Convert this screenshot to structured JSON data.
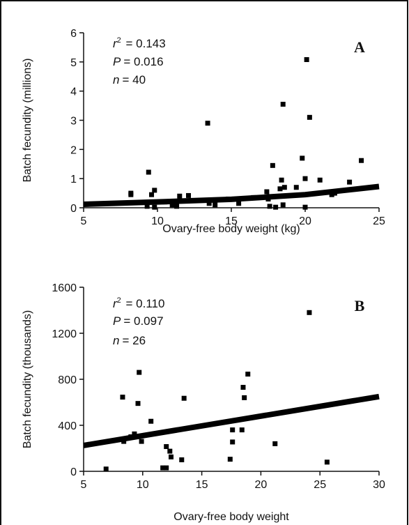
{
  "chart_data": [
    {
      "type": "scatter",
      "panel_label": "A",
      "xlabel": "Ovary-free body weight (kg)",
      "ylabel": "Batch fecundity (millions)",
      "xlim": [
        5,
        25
      ],
      "ylim": [
        0,
        6
      ],
      "xticks": [
        "5",
        "10",
        "15",
        "20",
        "25"
      ],
      "yticks": [
        "0",
        "1",
        "2",
        "3",
        "4",
        "5",
        "6"
      ],
      "stats": {
        "r2": "= 0.143",
        "p": "= 0.016",
        "n": "= 40"
      },
      "points": [
        {
          "x": 8.2,
          "y": 0.45
        },
        {
          "x": 8.2,
          "y": 0.5
        },
        {
          "x": 9.3,
          "y": 0.05
        },
        {
          "x": 9.4,
          "y": 1.22
        },
        {
          "x": 9.6,
          "y": 0.45
        },
        {
          "x": 9.8,
          "y": 0.6
        },
        {
          "x": 9.8,
          "y": 0.02
        },
        {
          "x": 10.5,
          "y": 0.2
        },
        {
          "x": 11.0,
          "y": 0.1
        },
        {
          "x": 11.3,
          "y": 0.05
        },
        {
          "x": 11.5,
          "y": 0.4
        },
        {
          "x": 12.1,
          "y": 0.42
        },
        {
          "x": 13.4,
          "y": 2.9
        },
        {
          "x": 13.5,
          "y": 0.15
        },
        {
          "x": 13.9,
          "y": 0.1
        },
        {
          "x": 15.5,
          "y": 0.15
        },
        {
          "x": 17.4,
          "y": 0.55
        },
        {
          "x": 17.5,
          "y": 0.3
        },
        {
          "x": 17.6,
          "y": 0.05
        },
        {
          "x": 17.8,
          "y": 1.45
        },
        {
          "x": 18.0,
          "y": 0.02
        },
        {
          "x": 18.3,
          "y": 0.65
        },
        {
          "x": 18.4,
          "y": 0.95
        },
        {
          "x": 18.5,
          "y": 0.1
        },
        {
          "x": 18.5,
          "y": 3.55
        },
        {
          "x": 18.6,
          "y": 0.7
        },
        {
          "x": 19.4,
          "y": 0.7
        },
        {
          "x": 19.8,
          "y": 1.7
        },
        {
          "x": 20.0,
          "y": 1.0
        },
        {
          "x": 20.0,
          "y": 0.02
        },
        {
          "x": 20.1,
          "y": 5.08
        },
        {
          "x": 20.3,
          "y": 3.1
        },
        {
          "x": 21.0,
          "y": 0.95
        },
        {
          "x": 21.8,
          "y": 0.45
        },
        {
          "x": 22.0,
          "y": 0.5
        },
        {
          "x": 23.0,
          "y": 0.88
        },
        {
          "x": 23.8,
          "y": 1.62
        },
        {
          "x": 14.8,
          "y": 0.3
        },
        {
          "x": 16.5,
          "y": 0.35
        },
        {
          "x": 12.5,
          "y": 0.25
        }
      ],
      "fit": {
        "x": [
          5,
          10,
          15,
          20,
          25
        ],
        "y": [
          0.12,
          0.2,
          0.29,
          0.45,
          0.73
        ]
      }
    },
    {
      "type": "scatter",
      "panel_label": "B",
      "xlabel": "Ovary-free body weight",
      "ylabel": "Batch fecundity (thousands)",
      "xlim": [
        5,
        30
      ],
      "ylim": [
        0,
        1600
      ],
      "xticks": [
        "5",
        "10",
        "15",
        "20",
        "25",
        "30"
      ],
      "yticks": [
        "0",
        "400",
        "800",
        "1200",
        "1600"
      ],
      "stats": {
        "r2": "= 0.110",
        "p": "= 0.097",
        "n": "= 26"
      },
      "points": [
        {
          "x": 6.9,
          "y": 20
        },
        {
          "x": 8.3,
          "y": 645
        },
        {
          "x": 8.4,
          "y": 260
        },
        {
          "x": 9.3,
          "y": 325
        },
        {
          "x": 9.6,
          "y": 590
        },
        {
          "x": 9.7,
          "y": 860
        },
        {
          "x": 9.9,
          "y": 260
        },
        {
          "x": 10.7,
          "y": 435
        },
        {
          "x": 11.7,
          "y": 30
        },
        {
          "x": 12.0,
          "y": 30
        },
        {
          "x": 12.0,
          "y": 215
        },
        {
          "x": 12.3,
          "y": 175
        },
        {
          "x": 12.4,
          "y": 125
        },
        {
          "x": 13.3,
          "y": 100
        },
        {
          "x": 13.5,
          "y": 635
        },
        {
          "x": 17.4,
          "y": 105
        },
        {
          "x": 17.6,
          "y": 255
        },
        {
          "x": 17.6,
          "y": 360
        },
        {
          "x": 18.4,
          "y": 360
        },
        {
          "x": 18.5,
          "y": 730
        },
        {
          "x": 18.6,
          "y": 640
        },
        {
          "x": 18.9,
          "y": 845
        },
        {
          "x": 21.2,
          "y": 240
        },
        {
          "x": 24.1,
          "y": 1380
        },
        {
          "x": 25.6,
          "y": 80
        },
        {
          "x": 9.0,
          "y": 300
        }
      ],
      "fit": {
        "x": [
          5,
          30
        ],
        "y": [
          225,
          650
        ]
      }
    }
  ]
}
